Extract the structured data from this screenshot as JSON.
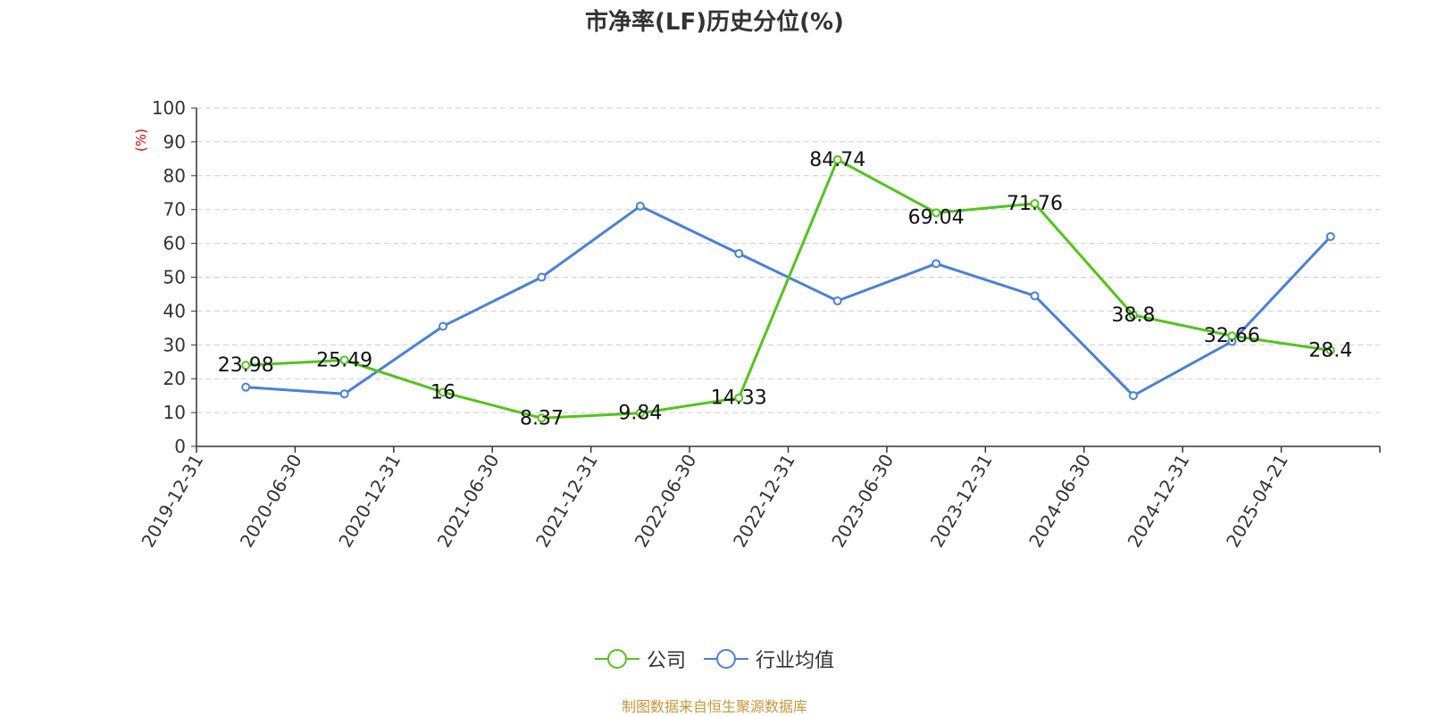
{
  "title": "市净率(LF)历史分位(%)",
  "source": "制图数据来自恒生聚源数据库",
  "chart_data": {
    "type": "line",
    "title": "市净率(LF)历史分位(%)",
    "ylabel": "(%)",
    "ylim": [
      0,
      100
    ],
    "yticks": [
      0,
      10,
      20,
      30,
      40,
      50,
      60,
      70,
      80,
      90,
      100
    ],
    "grid": true,
    "legend_position": "bottom",
    "categories": [
      "2019-12-31",
      "2020-06-30",
      "2020-12-31",
      "2021-06-30",
      "2021-12-31",
      "2022-06-30",
      "2022-12-31",
      "2023-06-30",
      "2023-12-31",
      "2024-06-30",
      "2024-12-31",
      "2025-04-21"
    ],
    "series": [
      {
        "name": "公司",
        "color": "#52c41a",
        "show_labels": true,
        "values": [
          23.98,
          25.49,
          16,
          8.37,
          9.84,
          14.33,
          84.74,
          69.04,
          71.76,
          38.8,
          32.66,
          28.4
        ]
      },
      {
        "name": "行业均值",
        "color": "#4a80d9",
        "show_labels": false,
        "values": [
          17.5,
          15.5,
          35.5,
          50,
          71,
          57,
          43,
          54,
          44.5,
          15,
          31,
          62
        ]
      }
    ]
  }
}
